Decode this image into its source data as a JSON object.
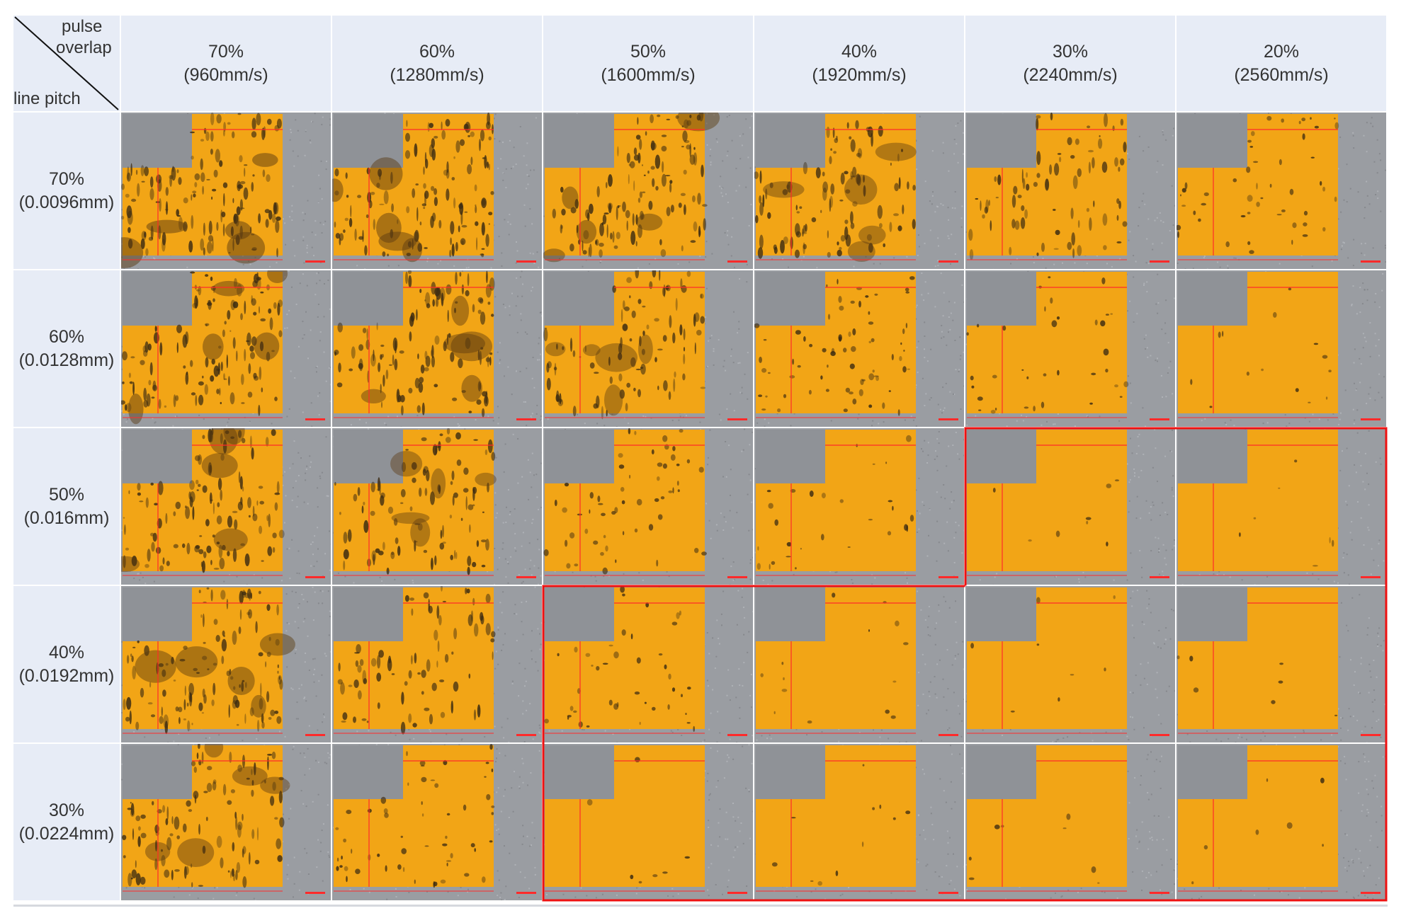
{
  "table": {
    "corner": {
      "top_label_1": "pulse",
      "top_label_2": "overlap",
      "bottom_label": "line pitch"
    },
    "columns": [
      {
        "percent": "70%",
        "speed": "(960mm/s)"
      },
      {
        "percent": "60%",
        "speed": "(1280mm/s)"
      },
      {
        "percent": "50%",
        "speed": "(1600mm/s)"
      },
      {
        "percent": "40%",
        "speed": "(1920mm/s)"
      },
      {
        "percent": "30%",
        "speed": "(2240mm/s)"
      },
      {
        "percent": "20%",
        "speed": "(2560mm/s)"
      }
    ],
    "rows": [
      {
        "percent": "70%",
        "pitch": "(0.0096mm)"
      },
      {
        "percent": "60%",
        "pitch": "(0.0128mm)"
      },
      {
        "percent": "50%",
        "pitch": "(0.016mm)"
      },
      {
        "percent": "40%",
        "pitch": "(0.0192mm)"
      },
      {
        "percent": "30%",
        "pitch": "(0.0224mm)"
      }
    ],
    "defect_density": [
      [
        0.95,
        0.9,
        0.85,
        0.7,
        0.55,
        0.35
      ],
      [
        0.9,
        0.8,
        0.65,
        0.5,
        0.25,
        0.1
      ],
      [
        0.8,
        0.7,
        0.4,
        0.2,
        0.06,
        0.05
      ],
      [
        0.85,
        0.55,
        0.3,
        0.1,
        0.06,
        0.05
      ],
      [
        0.75,
        0.4,
        0.05,
        0.08,
        0.06,
        0.05
      ]
    ],
    "highlighted_cells": [
      [
        2,
        4
      ],
      [
        2,
        5
      ],
      [
        3,
        2
      ],
      [
        3,
        3
      ],
      [
        3,
        4
      ],
      [
        3,
        5
      ],
      [
        4,
        2
      ],
      [
        4,
        3
      ],
      [
        4,
        4
      ],
      [
        4,
        5
      ]
    ]
  },
  "colors": {
    "header_bg": "#e7ecf6",
    "metal_orange": "#f2a516",
    "substrate_gray": "#9a9da2",
    "measure_red": "#ff2a2a",
    "highlight_red": "#ee1111"
  }
}
